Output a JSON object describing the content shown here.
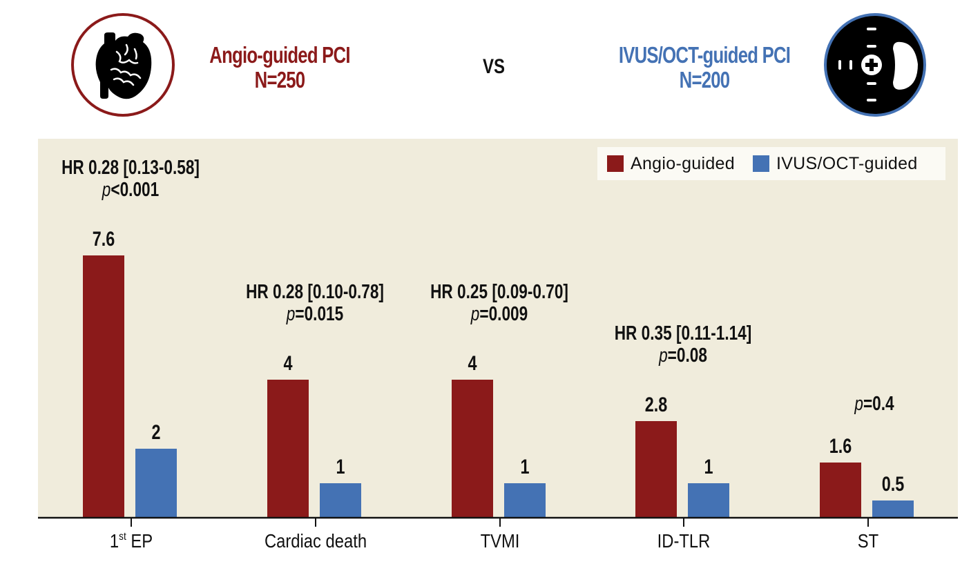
{
  "header": {
    "angio": {
      "title": "Angio-guided PCI",
      "n": "N=250"
    },
    "vs": "VS",
    "ivus": {
      "title": "IVUS/OCT-guided PCI",
      "n": "N=200"
    },
    "icons": {
      "left": "heart-icon",
      "right": "ivus-cross-section-icon"
    }
  },
  "colors": {
    "angio": "#8b1a1a",
    "ivus": "#4472b4",
    "panel": "#f0ecdc"
  },
  "chart_data": {
    "type": "bar",
    "title": "",
    "xlabel": "",
    "ylabel": "",
    "ylim": [
      0,
      8
    ],
    "grid": false,
    "legend_position": "top-right",
    "categories": [
      {
        "label": "1",
        "sup": "st",
        "rest": " EP"
      },
      {
        "label": "Cardiac death",
        "sup": "",
        "rest": ""
      },
      {
        "label": "TVMI",
        "sup": "",
        "rest": ""
      },
      {
        "label": "ID-TLR",
        "sup": "",
        "rest": ""
      },
      {
        "label": "ST",
        "sup": "",
        "rest": ""
      }
    ],
    "series": [
      {
        "name": "Angio-guided",
        "color": "#8b1a1a",
        "values": [
          7.6,
          4,
          4,
          2.8,
          1.6
        ],
        "labels": [
          "7.6",
          "4",
          "4",
          "2.8",
          "1.6"
        ]
      },
      {
        "name": "IVUS/OCT-guided",
        "color": "#4472b4",
        "values": [
          2,
          1,
          1,
          1,
          0.5
        ],
        "labels": [
          "2",
          "1",
          "1",
          "1",
          "0.5"
        ]
      }
    ],
    "annotations": [
      {
        "hr": "HR 0.28 [0.13-0.58]",
        "p_prefix": "p",
        "p_value": "<0.001"
      },
      {
        "hr": "HR 0.28 [0.10-0.78]",
        "p_prefix": "p",
        "p_value": "=0.015"
      },
      {
        "hr": "HR 0.25 [0.09-0.70]",
        "p_prefix": "p",
        "p_value": "=0.009"
      },
      {
        "hr": "HR 0.35 [0.11-1.14]",
        "p_prefix": "p",
        "p_value": "=0.08"
      },
      {
        "hr": "",
        "p_prefix": "p",
        "p_value": "=0.4"
      }
    ]
  }
}
